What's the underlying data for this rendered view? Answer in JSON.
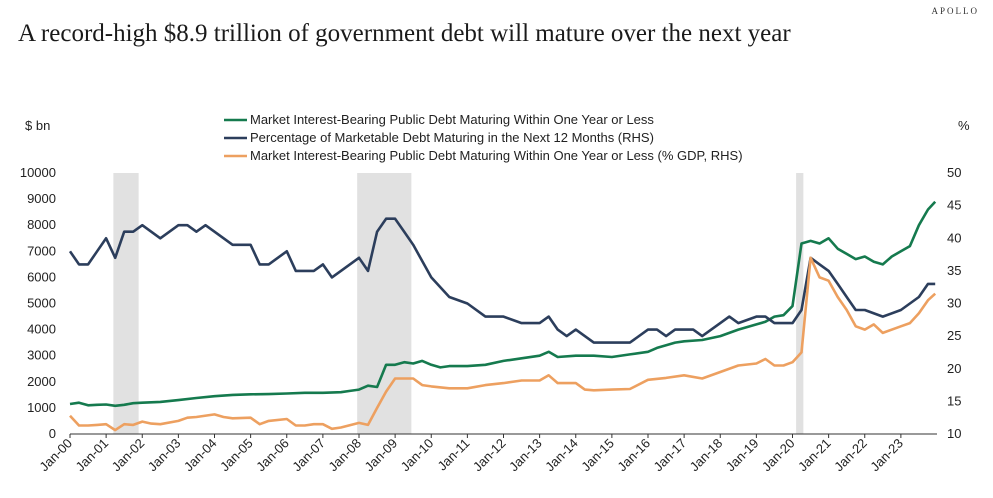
{
  "brand": "APOLLO",
  "title": "A record-high $8.9 trillion of government debt will mature over the next year",
  "chart_data": {
    "type": "line",
    "left_unit": "$ bn",
    "right_unit": "%",
    "ylim": [
      0,
      10000
    ],
    "y_ticks": [
      "0",
      "1000",
      "2000",
      "3000",
      "4000",
      "5000",
      "6000",
      "7000",
      "8000",
      "9000",
      "10000"
    ],
    "y2lim": [
      10,
      50
    ],
    "y2_ticks": [
      "10",
      "15",
      "20",
      "25",
      "30",
      "35",
      "40",
      "45",
      "50"
    ],
    "x_start": 2000,
    "x_end": 2024,
    "x_ticks": [
      "Jan-00",
      "Jan-01",
      "Jan-02",
      "Jan-03",
      "Jan-04",
      "Jan-05",
      "Jan-06",
      "Jan-07",
      "Jan-08",
      "Jan-09",
      "Jan-10",
      "Jan-11",
      "Jan-12",
      "Jan-13",
      "Jan-14",
      "Jan-15",
      "Jan-16",
      "Jan-17",
      "Jan-18",
      "Jan-19",
      "Jan-20",
      "Jan-21",
      "Jan-22",
      "Jan-23"
    ],
    "grid": false,
    "legend_position": "top-center",
    "recessions": [
      [
        2001.2,
        2001.9
      ],
      [
        2007.95,
        2009.45
      ],
      [
        2020.1,
        2020.3
      ]
    ],
    "series": [
      {
        "name": "Market Interest-Bearing Public Debt Maturing Within One Year or Less",
        "axis": "left",
        "color": "#157a4e",
        "points": [
          [
            2000.0,
            1150
          ],
          [
            2000.25,
            1200
          ],
          [
            2000.5,
            1100
          ],
          [
            2000.75,
            1120
          ],
          [
            2001.0,
            1130
          ],
          [
            2001.25,
            1080
          ],
          [
            2001.5,
            1120
          ],
          [
            2001.75,
            1180
          ],
          [
            2002.0,
            1200
          ],
          [
            2002.5,
            1230
          ],
          [
            2003.0,
            1300
          ],
          [
            2003.5,
            1380
          ],
          [
            2004.0,
            1450
          ],
          [
            2004.5,
            1500
          ],
          [
            2005.0,
            1520
          ],
          [
            2005.5,
            1530
          ],
          [
            2006.0,
            1550
          ],
          [
            2006.5,
            1580
          ],
          [
            2007.0,
            1580
          ],
          [
            2007.5,
            1600
          ],
          [
            2007.75,
            1650
          ],
          [
            2008.0,
            1700
          ],
          [
            2008.25,
            1850
          ],
          [
            2008.5,
            1800
          ],
          [
            2008.75,
            2650
          ],
          [
            2009.0,
            2650
          ],
          [
            2009.25,
            2750
          ],
          [
            2009.5,
            2700
          ],
          [
            2009.75,
            2800
          ],
          [
            2010.0,
            2650
          ],
          [
            2010.25,
            2550
          ],
          [
            2010.5,
            2600
          ],
          [
            2010.75,
            2600
          ],
          [
            2011.0,
            2600
          ],
          [
            2011.5,
            2650
          ],
          [
            2012.0,
            2800
          ],
          [
            2012.5,
            2900
          ],
          [
            2013.0,
            3000
          ],
          [
            2013.25,
            3150
          ],
          [
            2013.5,
            2950
          ],
          [
            2014.0,
            3000
          ],
          [
            2014.5,
            3000
          ],
          [
            2015.0,
            2950
          ],
          [
            2015.5,
            3050
          ],
          [
            2016.0,
            3150
          ],
          [
            2016.25,
            3300
          ],
          [
            2016.5,
            3400
          ],
          [
            2016.75,
            3500
          ],
          [
            2017.0,
            3550
          ],
          [
            2017.5,
            3600
          ],
          [
            2018.0,
            3750
          ],
          [
            2018.5,
            4000
          ],
          [
            2019.0,
            4200
          ],
          [
            2019.25,
            4300
          ],
          [
            2019.5,
            4500
          ],
          [
            2019.75,
            4550
          ],
          [
            2020.0,
            4900
          ],
          [
            2020.25,
            7300
          ],
          [
            2020.5,
            7400
          ],
          [
            2020.75,
            7300
          ],
          [
            2021.0,
            7500
          ],
          [
            2021.25,
            7100
          ],
          [
            2021.5,
            6900
          ],
          [
            2021.75,
            6700
          ],
          [
            2022.0,
            6800
          ],
          [
            2022.25,
            6600
          ],
          [
            2022.5,
            6500
          ],
          [
            2022.75,
            6800
          ],
          [
            2023.0,
            7000
          ],
          [
            2023.25,
            7200
          ],
          [
            2023.5,
            8000
          ],
          [
            2023.75,
            8600
          ],
          [
            2023.95,
            8900
          ]
        ]
      },
      {
        "name": "Percentage of Marketable Debt Maturing in the Next 12 Months (RHS)",
        "axis": "right",
        "color": "#2c3e5c",
        "points": [
          [
            2000.0,
            38
          ],
          [
            2000.25,
            36
          ],
          [
            2000.5,
            36
          ],
          [
            2000.75,
            38
          ],
          [
            2001.0,
            40
          ],
          [
            2001.25,
            37
          ],
          [
            2001.5,
            41
          ],
          [
            2001.75,
            41
          ],
          [
            2002.0,
            42
          ],
          [
            2002.5,
            40
          ],
          [
            2003.0,
            42
          ],
          [
            2003.25,
            42
          ],
          [
            2003.5,
            41
          ],
          [
            2003.75,
            42
          ],
          [
            2004.0,
            41
          ],
          [
            2004.5,
            39
          ],
          [
            2005.0,
            39
          ],
          [
            2005.25,
            36
          ],
          [
            2005.5,
            36
          ],
          [
            2006.0,
            38
          ],
          [
            2006.25,
            35
          ],
          [
            2006.5,
            35
          ],
          [
            2006.75,
            35
          ],
          [
            2007.0,
            36
          ],
          [
            2007.25,
            34
          ],
          [
            2007.5,
            35
          ],
          [
            2008.0,
            37
          ],
          [
            2008.25,
            35
          ],
          [
            2008.5,
            41
          ],
          [
            2008.75,
            43
          ],
          [
            2009.0,
            43
          ],
          [
            2009.25,
            41
          ],
          [
            2009.5,
            39
          ],
          [
            2010.0,
            34
          ],
          [
            2010.5,
            31
          ],
          [
            2011.0,
            30
          ],
          [
            2011.5,
            28
          ],
          [
            2012.0,
            28
          ],
          [
            2012.5,
            27
          ],
          [
            2013.0,
            27
          ],
          [
            2013.25,
            28
          ],
          [
            2013.5,
            26
          ],
          [
            2013.75,
            25
          ],
          [
            2014.0,
            26
          ],
          [
            2014.25,
            25
          ],
          [
            2014.5,
            24
          ],
          [
            2015.0,
            24
          ],
          [
            2015.5,
            24
          ],
          [
            2016.0,
            26
          ],
          [
            2016.25,
            26
          ],
          [
            2016.5,
            25
          ],
          [
            2016.75,
            26
          ],
          [
            2017.0,
            26
          ],
          [
            2017.25,
            26
          ],
          [
            2017.5,
            25
          ],
          [
            2018.0,
            27
          ],
          [
            2018.25,
            28
          ],
          [
            2018.5,
            27
          ],
          [
            2019.0,
            28
          ],
          [
            2019.25,
            28
          ],
          [
            2019.5,
            27
          ],
          [
            2019.75,
            27
          ],
          [
            2020.0,
            27
          ],
          [
            2020.25,
            29
          ],
          [
            2020.5,
            37
          ],
          [
            2020.75,
            36
          ],
          [
            2021.0,
            35
          ],
          [
            2021.25,
            33
          ],
          [
            2021.5,
            31
          ],
          [
            2021.75,
            29
          ],
          [
            2022.0,
            29
          ],
          [
            2022.5,
            28
          ],
          [
            2023.0,
            29
          ],
          [
            2023.25,
            30
          ],
          [
            2023.5,
            31
          ],
          [
            2023.75,
            33
          ],
          [
            2023.95,
            33
          ]
        ]
      },
      {
        "name": "Market Interest-Bearing Public Debt Maturing Within One Year or Less (% GDP, RHS)",
        "axis": "right",
        "color": "#eda060",
        "points": [
          [
            2000.0,
            12.8
          ],
          [
            2000.25,
            11.3
          ],
          [
            2000.5,
            11.3
          ],
          [
            2000.75,
            11.4
          ],
          [
            2001.0,
            11.5
          ],
          [
            2001.25,
            10.6
          ],
          [
            2001.5,
            11.5
          ],
          [
            2001.75,
            11.4
          ],
          [
            2002.0,
            11.9
          ],
          [
            2002.25,
            11.6
          ],
          [
            2002.5,
            11.5
          ],
          [
            2003.0,
            12.0
          ],
          [
            2003.25,
            12.5
          ],
          [
            2003.5,
            12.6
          ],
          [
            2004.0,
            13.0
          ],
          [
            2004.25,
            12.6
          ],
          [
            2004.5,
            12.4
          ],
          [
            2005.0,
            12.5
          ],
          [
            2005.25,
            11.5
          ],
          [
            2005.5,
            12.0
          ],
          [
            2006.0,
            12.3
          ],
          [
            2006.25,
            11.3
          ],
          [
            2006.5,
            11.3
          ],
          [
            2006.75,
            11.5
          ],
          [
            2007.0,
            11.5
          ],
          [
            2007.25,
            10.8
          ],
          [
            2007.5,
            11.0
          ],
          [
            2008.0,
            11.7
          ],
          [
            2008.25,
            11.4
          ],
          [
            2008.5,
            14.0
          ],
          [
            2008.75,
            16.5
          ],
          [
            2009.0,
            18.5
          ],
          [
            2009.25,
            18.5
          ],
          [
            2009.5,
            18.5
          ],
          [
            2009.75,
            17.5
          ],
          [
            2010.0,
            17.3
          ],
          [
            2010.5,
            17.0
          ],
          [
            2011.0,
            17.0
          ],
          [
            2011.5,
            17.5
          ],
          [
            2012.0,
            17.8
          ],
          [
            2012.5,
            18.2
          ],
          [
            2013.0,
            18.2
          ],
          [
            2013.25,
            19.0
          ],
          [
            2013.5,
            17.8
          ],
          [
            2014.0,
            17.8
          ],
          [
            2014.25,
            16.8
          ],
          [
            2014.5,
            16.7
          ],
          [
            2015.0,
            16.8
          ],
          [
            2015.5,
            16.9
          ],
          [
            2016.0,
            18.3
          ],
          [
            2016.5,
            18.6
          ],
          [
            2017.0,
            19.0
          ],
          [
            2017.5,
            18.5
          ],
          [
            2018.0,
            19.5
          ],
          [
            2018.5,
            20.5
          ],
          [
            2019.0,
            20.8
          ],
          [
            2019.25,
            21.5
          ],
          [
            2019.5,
            20.5
          ],
          [
            2019.75,
            20.5
          ],
          [
            2020.0,
            21.0
          ],
          [
            2020.25,
            22.5
          ],
          [
            2020.5,
            37.0
          ],
          [
            2020.75,
            34.0
          ],
          [
            2021.0,
            33.5
          ],
          [
            2021.25,
            31.0
          ],
          [
            2021.5,
            29.0
          ],
          [
            2021.75,
            26.5
          ],
          [
            2022.0,
            26.0
          ],
          [
            2022.25,
            26.8
          ],
          [
            2022.5,
            25.5
          ],
          [
            2023.0,
            26.5
          ],
          [
            2023.25,
            27.0
          ],
          [
            2023.5,
            28.5
          ],
          [
            2023.75,
            30.5
          ],
          [
            2023.95,
            31.5
          ]
        ]
      }
    ]
  }
}
